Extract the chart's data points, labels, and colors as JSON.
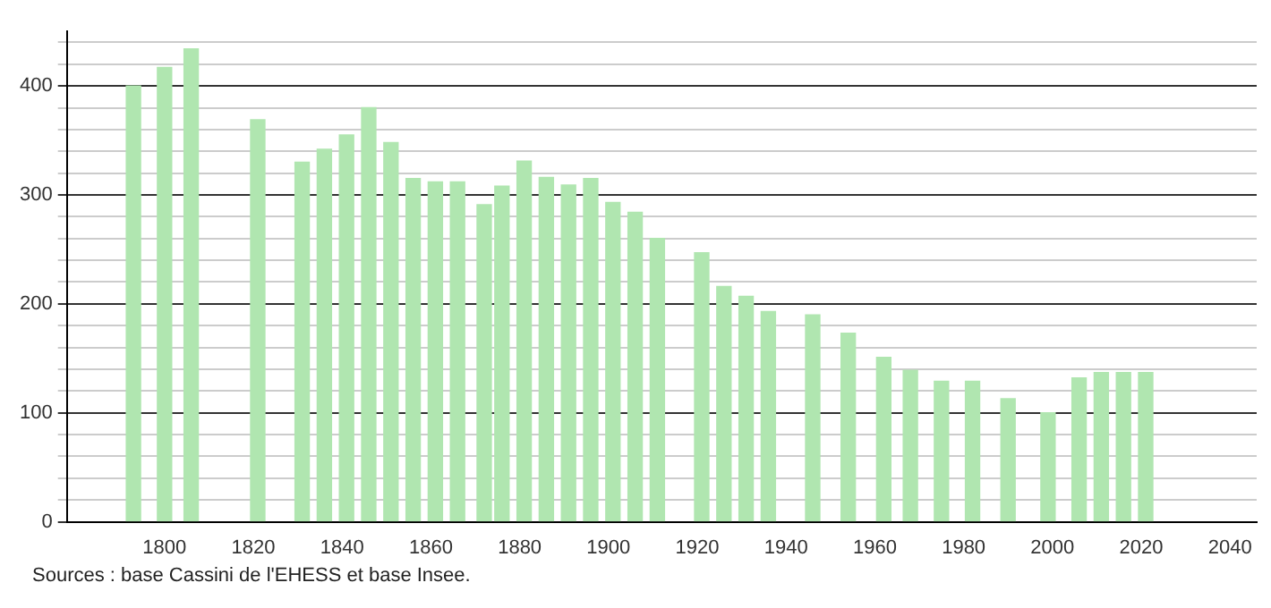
{
  "chart_data": {
    "type": "bar",
    "x": [
      1793,
      1800,
      1806,
      1821,
      1831,
      1836,
      1841,
      1846,
      1851,
      1856,
      1861,
      1866,
      1872,
      1876,
      1881,
      1886,
      1891,
      1896,
      1901,
      1906,
      1911,
      1921,
      1926,
      1931,
      1936,
      1946,
      1954,
      1962,
      1968,
      1975,
      1982,
      1990,
      1999,
      2006,
      2011,
      2016,
      2021
    ],
    "values": [
      400,
      417,
      434,
      369,
      330,
      342,
      355,
      380,
      348,
      315,
      312,
      312,
      291,
      308,
      331,
      316,
      309,
      315,
      293,
      284,
      260,
      247,
      216,
      207,
      193,
      190,
      173,
      151,
      139,
      129,
      129,
      113,
      100,
      132,
      137,
      137,
      137
    ],
    "color": "#b0e6b0",
    "xlim": [
      1778,
      2046
    ],
    "xticks": [
      1800,
      1820,
      1840,
      1860,
      1880,
      1900,
      1920,
      1940,
      1960,
      1980,
      2000,
      2020,
      2040
    ],
    "ylim": [
      0,
      450
    ],
    "yticks": [
      0,
      {
        "value": 20,
        "label": null
      },
      {
        "value": 40,
        "label": null
      },
      {
        "value": 60,
        "label": null
      },
      {
        "value": 80,
        "label": null
      },
      100,
      {
        "value": 120,
        "label": null
      },
      {
        "value": 140,
        "label": null
      },
      {
        "value": 160,
        "label": null
      },
      {
        "value": 180,
        "label": null
      },
      200,
      {
        "value": 220,
        "label": null
      },
      {
        "value": 240,
        "label": null
      },
      {
        "value": 260,
        "label": null
      },
      {
        "value": 280,
        "label": null
      },
      300,
      {
        "value": 320,
        "label": null
      },
      {
        "value": 340,
        "label": null
      },
      {
        "value": 360,
        "label": null
      },
      {
        "value": 380,
        "label": null
      },
      400,
      {
        "value": 420,
        "label": null
      },
      {
        "value": 440,
        "label": null
      }
    ],
    "grid": "y",
    "annotations": [
      "Sources : base Cassini de l'EHESS et base Insee."
    ]
  }
}
